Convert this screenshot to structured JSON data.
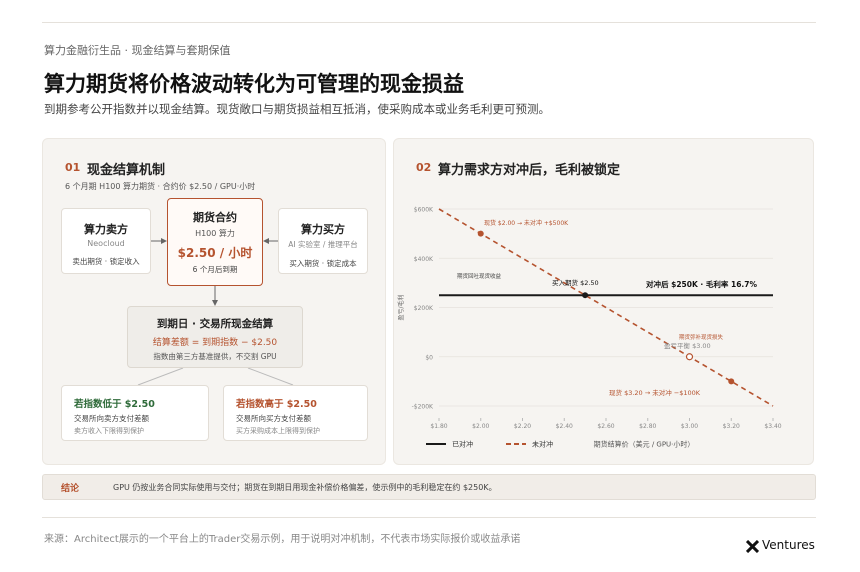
{
  "header": {
    "breadcrumb": "算力金融衍生品 · 现金结算与套期保值",
    "title": "算力期货将价格波动转化为可管理的现金损益",
    "subtitle": "到期参考公开指数并以现金结算。现货敞口与期货损益相互抵消，使采购成本或业务毛利更可预测。"
  },
  "left_panel": {
    "number": "01",
    "title": "现金结算机制",
    "subtitle": "6 个月期 H100 算力期货 · 合约价 $2.50 / GPU·小时",
    "seller": {
      "title": "算力卖方",
      "name": "Neocloud",
      "action": "卖出期货 · 锁定收入"
    },
    "contract": {
      "title": "期货合约",
      "name": "H100 算力",
      "price": "$2.50 / 小时",
      "expiry": "6 个月后到期"
    },
    "buyer": {
      "title": "算力买方",
      "name": "AI 实验室 / 推理平台",
      "action": "买入期货 · 锁定成本"
    },
    "settlement": {
      "title": "到期日 · 交易所现金结算",
      "formula": "结算差额 = 到期指数 − $2.50",
      "note": "指数由第三方基准提供，不交割 GPU"
    },
    "low_case": {
      "title": "若指数低于 $2.50",
      "line1": "交易所向卖方支付差额",
      "line2": "卖方收入下限得到保护"
    },
    "high_case": {
      "title": "若指数高于 $2.50",
      "line1": "交易所向买方支付差额",
      "line2": "买方采购成本上限得到保护"
    }
  },
  "right_panel": {
    "number": "02",
    "title": "算力需求方对冲后，毛利被锁定"
  },
  "chart_data": {
    "type": "line",
    "ylabel": "盈亏/毛利",
    "xlabel": "期货结算价（美元 / GPU·小时）",
    "x": [
      1.8,
      2.0,
      2.5,
      3.0,
      3.2,
      3.4
    ],
    "series": [
      {
        "name": "已对冲",
        "color": "#1a1a1a",
        "values": [
          250000,
          250000,
          250000,
          250000,
          250000,
          250000
        ]
      },
      {
        "name": "未对冲",
        "color": "#b5532f",
        "values": [
          600000,
          500000,
          250000,
          0,
          -100000,
          -200000
        ]
      }
    ],
    "xlim": [
      1.8,
      3.4
    ],
    "xticks": [
      {
        "value": 1.8,
        "label": "$1.80"
      },
      {
        "value": 2.0,
        "label": "$2.00"
      },
      {
        "value": 2.2,
        "label": "$2.20"
      },
      {
        "value": 2.4,
        "label": "$2.40"
      },
      {
        "value": 2.6,
        "label": "$2.60"
      },
      {
        "value": 2.8,
        "label": "$2.80"
      },
      {
        "value": 3.0,
        "label": "$3.00"
      },
      {
        "value": 3.2,
        "label": "$3.20"
      },
      {
        "value": 3.4,
        "label": "$3.40"
      }
    ],
    "ylim": [
      -200000,
      600000
    ],
    "yticks": [
      {
        "value": -200000,
        "label": "-$200K"
      },
      {
        "value": 0,
        "label": "$0"
      },
      {
        "value": 200000,
        "label": "$200K"
      },
      {
        "value": 400000,
        "label": "$400K"
      },
      {
        "value": 600000,
        "label": "$600K"
      }
    ],
    "grid": true,
    "annotations": [
      "现货 $2.00 → 未对冲 +$500K",
      "买入期货 $2.50",
      "对冲后 $250K · 毛利率 16.7%",
      "期货回吐现货收益",
      "期货弥补现货损失",
      "盈亏平衡 $3.00",
      "现货 $3.20 → 未对冲 −$100K"
    ]
  },
  "conclusion": {
    "label": "结论",
    "text": "GPU 仍按业务合同实际使用与交付；期货在到期日用现金补偿价格偏差，使示例中的毛利稳定在约 $250K。"
  },
  "footer": {
    "source": "来源：Architect展示的一个平台上的Trader交易示例，用于说明对冲机制，不代表市场实际报价或收益承诺",
    "logo": "Ventures"
  }
}
